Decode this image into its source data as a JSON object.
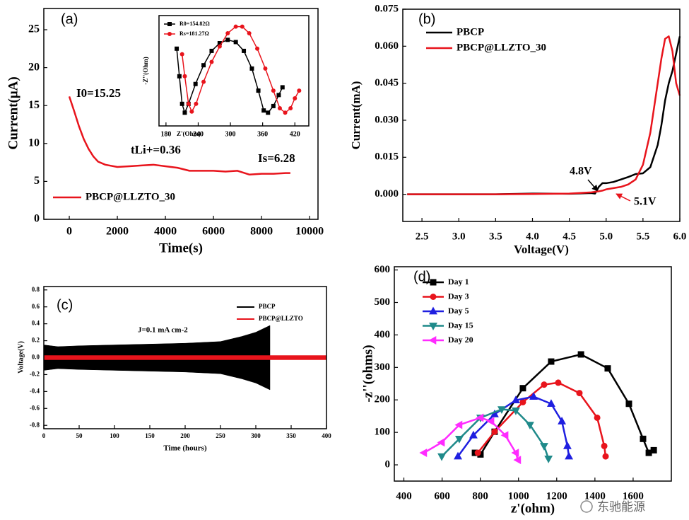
{
  "chart_data": [
    {
      "type": "line",
      "title": "(a)",
      "xlabel": "Time(s)",
      "ylabel": "Current(μA)",
      "xlim": [
        -1060,
        10350
      ],
      "ylim": [
        0,
        27.8
      ],
      "xticks": [
        0,
        2000,
        4000,
        6000,
        8000,
        10000
      ],
      "yticks": [
        0,
        5,
        10,
        15,
        20,
        25
      ],
      "x": [
        0,
        200,
        400,
        600,
        800,
        1000,
        1200,
        1500,
        2000,
        2500,
        3000,
        3500,
        4000,
        4500,
        5000,
        5500,
        6000,
        6500,
        7000,
        7500,
        8000,
        8500,
        9000,
        9200
      ],
      "series": [
        {
          "name": "PBCP@LLZTO_30",
          "color": "#e8141c",
          "values": [
            16.2,
            14.3,
            12.3,
            10.6,
            9.3,
            8.3,
            7.6,
            7.2,
            6.9,
            7.0,
            7.1,
            7.2,
            7.0,
            6.8,
            6.4,
            6.4,
            6.4,
            6.3,
            6.4,
            5.9,
            6.0,
            6.0,
            6.1,
            6.1
          ]
        }
      ],
      "annotations": [
        {
          "text": "I0=15.25",
          "color": "#000"
        },
        {
          "text": "tLi+=0.36",
          "color": "#000"
        },
        {
          "text": "Is=6.28",
          "color": "#000"
        }
      ]
    },
    {
      "type": "line",
      "xlabel": "Z'(Ohm)",
      "ylabel": "-Z''(Ohm)",
      "xlim": [
        167,
        446
      ],
      "ylim": [
        0,
        100
      ],
      "xticks": [
        180,
        240,
        300,
        360,
        420
      ],
      "series": [
        {
          "name": "R0=154.82Ω",
          "color": "#000",
          "marker": "square",
          "x": [
            200,
            205,
            210,
            215,
            222,
            235,
            250,
            265,
            280,
            295,
            310,
            325,
            340,
            352,
            362,
            370,
            380,
            390,
            397
          ],
          "values": [
            70,
            45,
            20,
            12,
            20,
            38,
            55,
            68,
            75,
            78,
            76,
            68,
            52,
            32,
            14,
            12,
            18,
            28,
            35
          ]
        },
        {
          "name": "Rs=181.27Ω",
          "color": "#e8141c",
          "marker": "circle",
          "x": [
            210,
            215,
            222,
            228,
            236,
            250,
            265,
            280,
            295,
            310,
            322,
            335,
            350,
            365,
            380,
            392,
            402,
            412,
            420,
            428
          ],
          "values": [
            65,
            45,
            20,
            13,
            20,
            40,
            58,
            72,
            84,
            90,
            90,
            84,
            70,
            52,
            32,
            16,
            12,
            16,
            25,
            32
          ]
        }
      ]
    },
    {
      "type": "line",
      "title": "(b)",
      "xlabel": "Voltage(V)",
      "ylabel": "Current(mA)",
      "xlim": [
        2.24,
        6.0
      ],
      "ylim": [
        -0.011,
        0.075
      ],
      "xticks": [
        2.5,
        {
          "value": 3,
          "label": "3.0"
        },
        3.5,
        {
          "value": 4,
          "label": "4.0"
        },
        4.5,
        {
          "value": 5,
          "label": "5.0"
        },
        5.5,
        {
          "value": 6,
          "label": "6.0"
        }
      ],
      "yticks": [
        {
          "value": 0,
          "label": "0.000"
        },
        0.015,
        {
          "value": 0.03,
          "label": "0.030"
        },
        0.045,
        {
          "value": 0.06,
          "label": "0.060"
        },
        0.075
      ],
      "x": [
        2.3,
        2.5,
        3.0,
        3.5,
        4.0,
        4.5,
        4.8,
        4.85,
        4.9,
        4.95,
        5.0,
        5.1,
        5.2,
        5.3,
        5.4,
        5.5,
        5.6,
        5.7,
        5.75,
        5.8,
        5.85,
        5.9,
        5.95,
        6.0
      ],
      "series": [
        {
          "name": "PBCP",
          "color": "#000",
          "values": [
            0,
            0,
            0,
            0,
            0.0003,
            0.0002,
            0.0005,
            0.0003,
            0.003,
            0.0045,
            0.0045,
            0.005,
            0.006,
            0.007,
            0.0082,
            0.0085,
            0.011,
            0.02,
            0.028,
            0.038,
            0.045,
            0.05,
            0.057,
            0.064
          ]
        },
        {
          "name": "PBCP@LLZTO_30",
          "color": "#e8141c",
          "values": [
            0,
            0,
            0,
            0,
            0.0001,
            0.0003,
            0.0008,
            0.001,
            0.0012,
            0.0015,
            0.002,
            0.0025,
            0.003,
            0.004,
            0.006,
            0.012,
            0.025,
            0.045,
            0.055,
            0.063,
            0.064,
            0.058,
            0.045,
            0.04
          ]
        }
      ],
      "annotations": [
        {
          "text": "4.8V",
          "color": "#000"
        },
        {
          "text": "5.1V",
          "color": "#e8141c"
        }
      ]
    },
    {
      "type": "envelope",
      "title": "(c)",
      "xlabel": "Time  (hours)",
      "ylabel": "Voltage(V)",
      "xlim": [
        0,
        400
      ],
      "ylim": [
        -0.84,
        0.84
      ],
      "xticks": [
        0,
        50,
        100,
        150,
        200,
        250,
        300,
        350,
        400
      ],
      "yticks": [
        -0.8,
        -0.6,
        -0.4,
        -0.2,
        {
          "value": 0,
          "label": "0.0"
        },
        0.2,
        0.4,
        0.6,
        0.8
      ],
      "series": [
        {
          "name": "PBCP",
          "color": "#000",
          "x": [
            0,
            20,
            50,
            100,
            150,
            200,
            250,
            280,
            300,
            320
          ],
          "values": [
            0.15,
            0.13,
            0.14,
            0.15,
            0.16,
            0.17,
            0.19,
            0.25,
            0.3,
            0.38
          ]
        },
        {
          "name": "PBCP@LLZTO",
          "color": "#e8141c",
          "x": [
            0,
            400
          ],
          "values": [
            0.025,
            0.025
          ]
        }
      ],
      "annotations": [
        {
          "text": "J=0.1 mA cm-2",
          "color": "#000"
        }
      ]
    },
    {
      "type": "line",
      "title": "(d)",
      "xlabel": "z'(ohm)",
      "ylabel": "-z''(ohms)",
      "xlim": [
        350,
        1800
      ],
      "ylim": [
        -50,
        610
      ],
      "xticks": [
        400,
        600,
        800,
        1000,
        1200,
        1400,
        1600
      ],
      "yticks": [
        0,
        100,
        200,
        300,
        400,
        500,
        600
      ],
      "series": [
        {
          "name": "Day 1",
          "color": "#000",
          "marker": "square",
          "x": [
            772,
            801,
            875,
            1023,
            1171,
            1327,
            1467,
            1578,
            1652,
            1682,
            1708
          ],
          "values": [
            37,
            32,
            102,
            236,
            318,
            340,
            297,
            188,
            80,
            37,
            45
          ]
        },
        {
          "name": "Day 3",
          "color": "#e8141c",
          "marker": "circle",
          "x": [
            787,
            875,
            1023,
            1134,
            1208,
            1319,
            1412,
            1449,
            1456
          ],
          "values": [
            37,
            102,
            193,
            247,
            253,
            221,
            145,
            58,
            26
          ]
        },
        {
          "name": "Day 5",
          "color": "#1f1fe0",
          "marker": "triangle-up",
          "x": [
            683,
            764,
            875,
            986,
            1079,
            1171,
            1227,
            1256,
            1264
          ],
          "values": [
            26,
            91,
            156,
            199,
            210,
            188,
            134,
            58,
            26
          ]
        },
        {
          "name": "Day 15",
          "color": "#1f8a8a",
          "marker": "triangle-down",
          "x": [
            598,
            690,
            801,
            912,
            986,
            1060,
            1134,
            1157
          ],
          "values": [
            26,
            80,
            145,
            171,
            167,
            123,
            58,
            19
          ]
        },
        {
          "name": "Day 20",
          "color": "#ff2bff",
          "marker": "triangle-left",
          "x": [
            505,
            598,
            690,
            801,
            857,
            931,
            986,
            997
          ],
          "values": [
            37,
            69,
            123,
            145,
            134,
            91,
            37,
            15
          ]
        }
      ]
    }
  ],
  "watermark": "东驰能源"
}
